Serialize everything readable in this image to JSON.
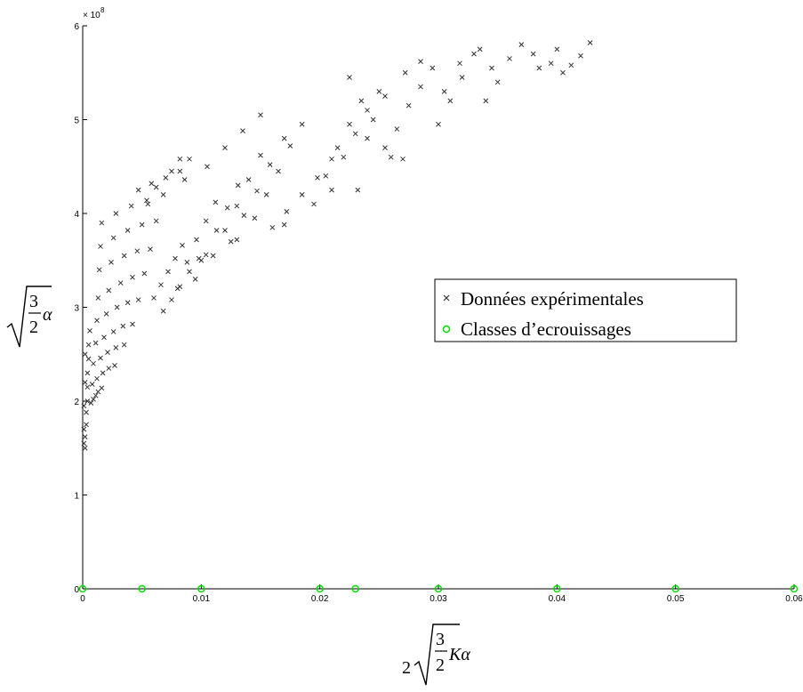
{
  "chart_data": {
    "type": "scatter",
    "title": "",
    "x_exponent_label": "",
    "y_exponent_label": "× 10",
    "y_exponent_power": "8",
    "xlabel": {
      "coef": "2",
      "num": "3",
      "den": "2",
      "tail": "Kα"
    },
    "ylabel": {
      "num": "3",
      "den": "2",
      "tail": "α"
    },
    "xlim": [
      0,
      0.06
    ],
    "ylim": [
      0,
      600000000
    ],
    "xticks": [
      {
        "value": 0,
        "label": "0"
      },
      {
        "value": 0.01,
        "label": "0.01"
      },
      {
        "value": 0.02,
        "label": "0.02"
      },
      {
        "value": 0.03,
        "label": "0.03"
      },
      {
        "value": 0.04,
        "label": "0.04"
      },
      {
        "value": 0.05,
        "label": "0.05"
      },
      {
        "value": 0.06,
        "label": "0.06"
      }
    ],
    "yticks": [
      {
        "value": 0,
        "label": "0"
      },
      {
        "value": 100000000,
        "label": "1"
      },
      {
        "value": 200000000,
        "label": "2"
      },
      {
        "value": 300000000,
        "label": "3"
      },
      {
        "value": 400000000,
        "label": "4"
      },
      {
        "value": 500000000,
        "label": "5"
      },
      {
        "value": 600000000,
        "label": "6"
      }
    ],
    "grid": false,
    "legend_position": "middle-right",
    "series": [
      {
        "name": "Données expérimentales",
        "marker": "x",
        "color": "#333333",
        "points": [
          [
            0.0002,
            150000000.0
          ],
          [
            0.0002,
            162000000.0
          ],
          [
            0.0003,
            175000000.0
          ],
          [
            0.0003,
            188000000.0
          ],
          [
            0.0004,
            200000000.0
          ],
          [
            0.0004,
            215000000.0
          ],
          [
            0.0004,
            230000000.0
          ],
          [
            0.0005,
            245000000.0
          ],
          [
            0.0005,
            260000000.0
          ],
          [
            0.0006,
            275000000.0
          ],
          [
            0.0001,
            155000000.0
          ],
          [
            0.0001,
            170000000.0
          ],
          [
            0.0001,
            195000000.0
          ],
          [
            0.0002,
            220000000.0
          ],
          [
            0.0002,
            250000000.0
          ],
          [
            0.0007,
            198000000.0
          ],
          [
            0.0009,
            202000000.0
          ],
          [
            0.0011,
            206000000.0
          ],
          [
            0.0013,
            210000000.0
          ],
          [
            0.0016,
            214000000.0
          ],
          [
            0.0008,
            218000000.0
          ],
          [
            0.0012,
            224000000.0
          ],
          [
            0.0017,
            230000000.0
          ],
          [
            0.0022,
            235000000.0
          ],
          [
            0.0027,
            238000000.0
          ],
          [
            0.0009,
            240000000.0
          ],
          [
            0.0015,
            246000000.0
          ],
          [
            0.0021,
            252000000.0
          ],
          [
            0.0028,
            257000000.0
          ],
          [
            0.0035,
            260000000.0
          ],
          [
            0.0011,
            262000000.0
          ],
          [
            0.0018,
            268000000.0
          ],
          [
            0.0026,
            274000000.0
          ],
          [
            0.0034,
            280000000.0
          ],
          [
            0.0042,
            282000000.0
          ],
          [
            0.0012,
            286000000.0
          ],
          [
            0.002,
            293000000.0
          ],
          [
            0.0029,
            300000000.0
          ],
          [
            0.0038,
            305000000.0
          ],
          [
            0.0047,
            308000000.0
          ],
          [
            0.0013,
            310000000.0
          ],
          [
            0.0022,
            318000000.0
          ],
          [
            0.0032,
            326000000.0
          ],
          [
            0.0042,
            332000000.0
          ],
          [
            0.0052,
            336000000.0
          ],
          [
            0.0014,
            340000000.0
          ],
          [
            0.0024,
            348000000.0
          ],
          [
            0.0035,
            355000000.0
          ],
          [
            0.0046,
            360000000.0
          ],
          [
            0.0057,
            362000000.0
          ],
          [
            0.0015,
            365000000.0
          ],
          [
            0.0026,
            374000000.0
          ],
          [
            0.0038,
            382000000.0
          ],
          [
            0.005,
            388000000.0
          ],
          [
            0.0062,
            392000000.0
          ],
          [
            0.0016,
            390000000.0
          ],
          [
            0.0028,
            400000000.0
          ],
          [
            0.0041,
            408000000.0
          ],
          [
            0.0054,
            414000000.0
          ],
          [
            0.0068,
            420000000.0
          ],
          [
            0.0047,
            425000000.0
          ],
          [
            0.0058,
            432000000.0
          ],
          [
            0.007,
            438000000.0
          ],
          [
            0.0082,
            445000000.0
          ],
          [
            0.009,
            458000000.0
          ],
          [
            0.006,
            310000000.0
          ],
          [
            0.0066,
            324000000.0
          ],
          [
            0.0072,
            338000000.0
          ],
          [
            0.0078,
            352000000.0
          ],
          [
            0.0084,
            366000000.0
          ],
          [
            0.0068,
            296000000.0
          ],
          [
            0.0075,
            308000000.0
          ],
          [
            0.0082,
            322000000.0
          ],
          [
            0.009,
            338000000.0
          ],
          [
            0.0098,
            352000000.0
          ],
          [
            0.008,
            320000000.0
          ],
          [
            0.0088,
            348000000.0
          ],
          [
            0.0096,
            372000000.0
          ],
          [
            0.0104,
            392000000.0
          ],
          [
            0.0112,
            412000000.0
          ],
          [
            0.0095,
            330000000.0
          ],
          [
            0.0104,
            356000000.0
          ],
          [
            0.0113,
            382000000.0
          ],
          [
            0.0122,
            406000000.0
          ],
          [
            0.0131,
            430000000.0
          ],
          [
            0.011,
            355000000.0
          ],
          [
            0.012,
            382000000.0
          ],
          [
            0.013,
            408000000.0
          ],
          [
            0.014,
            436000000.0
          ],
          [
            0.015,
            462000000.0
          ],
          [
            0.0125,
            370000000.0
          ],
          [
            0.0136,
            398000000.0
          ],
          [
            0.0147,
            424000000.0
          ],
          [
            0.0158,
            452000000.0
          ],
          [
            0.017,
            480000000.0
          ],
          [
            0.0145,
            395000000.0
          ],
          [
            0.0155,
            420000000.0
          ],
          [
            0.0165,
            445000000.0
          ],
          [
            0.0175,
            472000000.0
          ],
          [
            0.0185,
            495000000.0
          ],
          [
            0.015,
            505000000.0
          ],
          [
            0.0135,
            488000000.0
          ],
          [
            0.012,
            470000000.0
          ],
          [
            0.0105,
            450000000.0
          ],
          [
            0.016,
            385000000.0
          ],
          [
            0.0172,
            402000000.0
          ],
          [
            0.0185,
            420000000.0
          ],
          [
            0.0198,
            438000000.0
          ],
          [
            0.021,
            458000000.0
          ],
          [
            0.0195,
            410000000.0
          ],
          [
            0.0205,
            440000000.0
          ],
          [
            0.0215,
            470000000.0
          ],
          [
            0.0225,
            495000000.0
          ],
          [
            0.0235,
            520000000.0
          ],
          [
            0.021,
            425000000.0
          ],
          [
            0.022,
            460000000.0
          ],
          [
            0.023,
            485000000.0
          ],
          [
            0.024,
            510000000.0
          ],
          [
            0.025,
            530000000.0
          ],
          [
            0.0225,
            545000000.0
          ],
          [
            0.024,
            480000000.0
          ],
          [
            0.0245,
            500000000.0
          ],
          [
            0.0255,
            525000000.0
          ],
          [
            0.0255,
            470000000.0
          ],
          [
            0.0265,
            490000000.0
          ],
          [
            0.0275,
            515000000.0
          ],
          [
            0.0285,
            535000000.0
          ],
          [
            0.0295,
            555000000.0
          ],
          [
            0.026,
            460000000.0
          ],
          [
            0.0272,
            550000000.0
          ],
          [
            0.0285,
            562000000.0
          ],
          [
            0.03,
            495000000.0
          ],
          [
            0.031,
            520000000.0
          ],
          [
            0.032,
            545000000.0
          ],
          [
            0.033,
            570000000.0
          ],
          [
            0.0305,
            530000000.0
          ],
          [
            0.0318,
            560000000.0
          ],
          [
            0.0335,
            575000000.0
          ],
          [
            0.0345,
            555000000.0
          ],
          [
            0.034,
            520000000.0
          ],
          [
            0.035,
            540000000.0
          ],
          [
            0.036,
            565000000.0
          ],
          [
            0.037,
            580000000.0
          ],
          [
            0.038,
            570000000.0
          ],
          [
            0.0385,
            555000000.0
          ],
          [
            0.0395,
            560000000.0
          ],
          [
            0.04,
            575000000.0
          ],
          [
            0.0405,
            550000000.0
          ],
          [
            0.0412,
            558000000.0
          ],
          [
            0.042,
            568000000.0
          ],
          [
            0.0428,
            582000000.0
          ],
          [
            0.027,
            458000000.0
          ],
          [
            0.0232,
            425000000.0
          ],
          [
            0.017,
            388000000.0
          ],
          [
            0.013,
            372000000.0
          ],
          [
            0.01,
            350000000.0
          ],
          [
            0.0055,
            410000000.0
          ],
          [
            0.0062,
            428000000.0
          ],
          [
            0.0075,
            445000000.0
          ],
          [
            0.0082,
            458000000.0
          ],
          [
            0.0086,
            436000000.0
          ]
        ]
      },
      {
        "name": "Classes d’ecrouissages",
        "marker": "o",
        "color": "#00e000",
        "points": [
          [
            0,
            0
          ],
          [
            0.005,
            0
          ],
          [
            0.01,
            0
          ],
          [
            0.02,
            0
          ],
          [
            0.023,
            0
          ],
          [
            0.03,
            0
          ],
          [
            0.04,
            0
          ],
          [
            0.05,
            0
          ],
          [
            0.06,
            0
          ]
        ]
      }
    ]
  }
}
